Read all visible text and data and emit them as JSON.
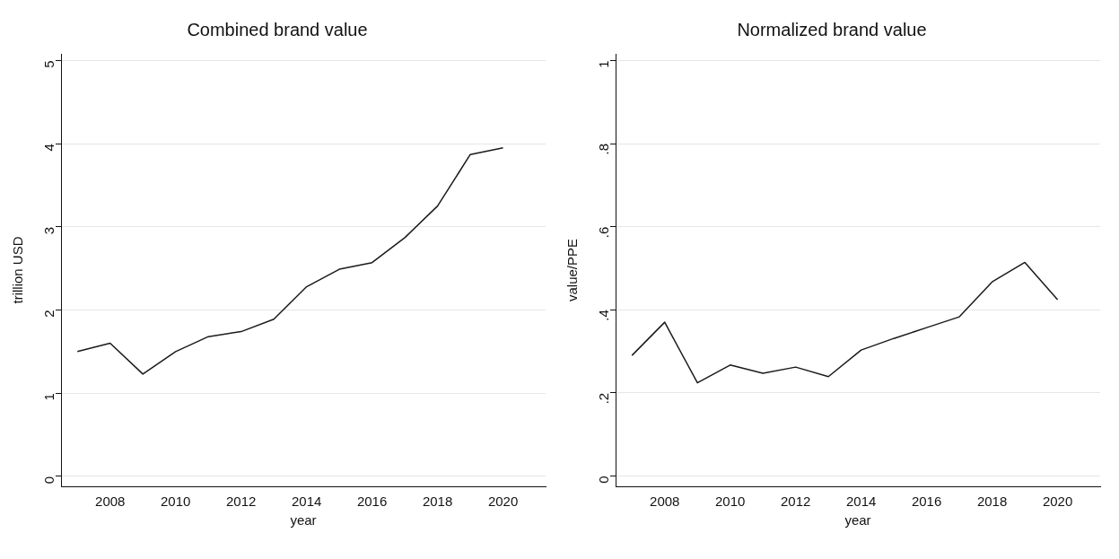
{
  "chart_data": [
    {
      "type": "line",
      "title": "Combined brand value",
      "xlabel": "year",
      "ylabel": "trillion USD",
      "x": [
        2007,
        2008,
        2009,
        2010,
        2011,
        2012,
        2013,
        2014,
        2015,
        2016,
        2017,
        2018,
        2019,
        2020
      ],
      "series": [
        {
          "color": "#1a1a1a",
          "values": [
            1.5,
            1.6,
            1.23,
            1.5,
            1.68,
            1.74,
            1.89,
            2.28,
            2.49,
            2.57,
            2.87,
            3.25,
            3.87,
            3.95
          ]
        }
      ],
      "xlim": [
        2006.5,
        2021.3
      ],
      "xticks": [
        2008,
        2010,
        2012,
        2014,
        2016,
        2018,
        2020
      ],
      "ylim": [
        -0.12,
        5.08
      ],
      "yticks": [
        0,
        1,
        2,
        3,
        4,
        5
      ],
      "grid": "y",
      "legend": false,
      "marker": "none",
      "line_style": "solid"
    },
    {
      "type": "line",
      "title": "Normalized brand value",
      "xlabel": "year",
      "ylabel": "value/PPE",
      "x": [
        2007,
        2008,
        2009,
        2010,
        2011,
        2012,
        2013,
        2014,
        2015,
        2016,
        2017,
        2018,
        2019,
        2020
      ],
      "series": [
        {
          "color": "#1a1a1a",
          "values": [
            0.29,
            0.37,
            0.224,
            0.267,
            0.247,
            0.262,
            0.239,
            0.303,
            0.331,
            0.357,
            0.383,
            0.467,
            0.514,
            0.424
          ]
        }
      ],
      "xlim": [
        2006.5,
        2021.3
      ],
      "xticks": [
        2008,
        2010,
        2012,
        2014,
        2016,
        2018,
        2020
      ],
      "ylim": [
        -0.025,
        1.016
      ],
      "yticks": [
        0,
        {
          "value": 0.2,
          "label": ".2"
        },
        {
          "value": 0.4,
          "label": ".4"
        },
        {
          "value": 0.6,
          "label": ".6"
        },
        {
          "value": 0.8,
          "label": ".8"
        },
        1
      ],
      "grid": "y",
      "legend": false,
      "marker": "none",
      "line_style": "solid"
    }
  ]
}
